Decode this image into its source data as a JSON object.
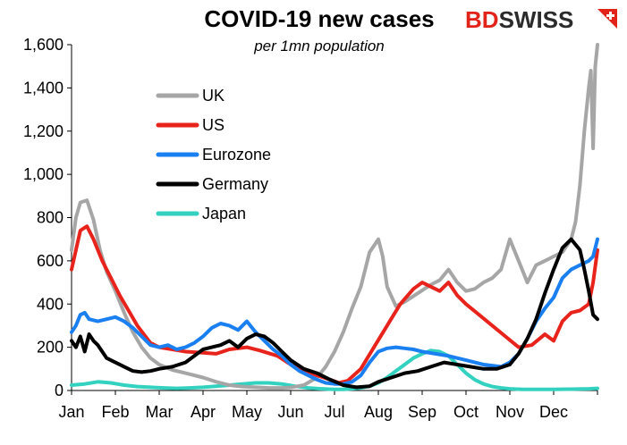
{
  "brand": {
    "part1": "BD",
    "part2": "SWISS",
    "color1": "#e2231a",
    "color2": "#2b2b2b"
  },
  "chart_data": {
    "type": "line",
    "title": "COVID-19  new cases",
    "subtitle": "per 1mn population",
    "xlabel": "",
    "ylabel": "",
    "ylim": [
      0,
      1600
    ],
    "yticks": [
      0,
      200,
      400,
      600,
      800,
      1000,
      1200,
      1400,
      1600
    ],
    "ytick_labels": [
      "0",
      "200",
      "400",
      "600",
      "800",
      "1,000",
      "1,200",
      "1,400",
      "1,600"
    ],
    "x_tick_labels": [
      "Jan",
      "Feb",
      "Mar",
      "Apr",
      "May",
      "Jun",
      "Jul",
      "Aug",
      "Sep",
      "Oct",
      "Nov",
      "Dec"
    ],
    "xlim": [
      0,
      12
    ],
    "grid": false,
    "legend": "upper-left",
    "series": [
      {
        "name": "UK",
        "color": "#a6a6a6",
        "x": [
          0.0,
          0.1,
          0.2,
          0.35,
          0.5,
          0.65,
          0.8,
          1.0,
          1.2,
          1.4,
          1.6,
          1.8,
          2.0,
          2.3,
          2.6,
          3.0,
          3.3,
          3.6,
          3.9,
          4.2,
          4.5,
          4.8,
          5.0,
          5.3,
          5.6,
          5.8,
          6.0,
          6.2,
          6.4,
          6.6,
          6.8,
          7.0,
          7.1,
          7.2,
          7.4,
          7.6,
          7.9,
          8.2,
          8.4,
          8.6,
          8.8,
          9.0,
          9.2,
          9.4,
          9.6,
          9.8,
          10.0,
          10.2,
          10.4,
          10.6,
          10.8,
          11.0,
          11.2,
          11.4,
          11.5,
          11.6,
          11.7,
          11.8,
          11.85,
          11.9,
          11.95,
          12.0
        ],
        "y": [
          650,
          800,
          870,
          880,
          790,
          650,
          550,
          460,
          360,
          270,
          200,
          150,
          120,
          95,
          80,
          60,
          40,
          25,
          18,
          15,
          12,
          12,
          14,
          25,
          60,
          110,
          180,
          270,
          380,
          480,
          640,
          700,
          620,
          480,
          390,
          410,
          450,
          490,
          510,
          560,
          500,
          460,
          470,
          500,
          520,
          560,
          700,
          600,
          500,
          580,
          600,
          620,
          640,
          700,
          780,
          950,
          1200,
          1400,
          1480,
          1120,
          1500,
          1600
        ]
      },
      {
        "name": "US",
        "color": "#e8231c",
        "x": [
          0.0,
          0.1,
          0.2,
          0.35,
          0.5,
          0.7,
          0.9,
          1.1,
          1.3,
          1.5,
          1.8,
          2.0,
          2.3,
          2.6,
          3.0,
          3.3,
          3.6,
          4.0,
          4.3,
          4.7,
          5.0,
          5.3,
          5.6,
          5.9,
          6.1,
          6.3,
          6.6,
          6.9,
          7.2,
          7.5,
          7.8,
          8.0,
          8.2,
          8.4,
          8.6,
          8.8,
          9.0,
          9.3,
          9.6,
          9.9,
          10.2,
          10.5,
          10.8,
          11.0,
          11.2,
          11.4,
          11.6,
          11.8,
          11.9,
          12.0
        ],
        "y": [
          560,
          650,
          740,
          760,
          700,
          600,
          520,
          440,
          370,
          300,
          220,
          200,
          190,
          180,
          175,
          170,
          190,
          200,
          185,
          160,
          120,
          90,
          70,
          50,
          35,
          45,
          100,
          200,
          300,
          400,
          470,
          500,
          480,
          460,
          500,
          440,
          400,
          350,
          300,
          250,
          200,
          210,
          260,
          230,
          320,
          360,
          370,
          400,
          500,
          650
        ]
      },
      {
        "name": "Eurozone",
        "color": "#1a7ff0",
        "x": [
          0.0,
          0.1,
          0.2,
          0.3,
          0.4,
          0.6,
          0.8,
          1.0,
          1.2,
          1.4,
          1.6,
          1.8,
          2.0,
          2.2,
          2.4,
          2.6,
          2.8,
          3.0,
          3.2,
          3.4,
          3.6,
          3.8,
          4.0,
          4.2,
          4.4,
          4.6,
          4.8,
          5.0,
          5.2,
          5.4,
          5.6,
          5.8,
          6.0,
          6.2,
          6.4,
          6.6,
          6.8,
          7.0,
          7.2,
          7.4,
          7.6,
          7.8,
          8.0,
          8.3,
          8.6,
          9.0,
          9.4,
          9.8,
          10.0,
          10.2,
          10.4,
          10.6,
          10.8,
          11.0,
          11.2,
          11.4,
          11.6,
          11.8,
          11.9,
          12.0
        ],
        "y": [
          270,
          300,
          350,
          360,
          330,
          320,
          330,
          340,
          320,
          290,
          250,
          210,
          200,
          210,
          190,
          200,
          220,
          250,
          290,
          310,
          300,
          280,
          320,
          270,
          230,
          190,
          160,
          120,
          90,
          70,
          50,
          35,
          30,
          30,
          40,
          70,
          130,
          180,
          195,
          200,
          195,
          190,
          180,
          170,
          160,
          140,
          120,
          110,
          130,
          170,
          240,
          320,
          380,
          430,
          520,
          560,
          580,
          600,
          620,
          700
        ]
      },
      {
        "name": "Germany",
        "color": "#000000",
        "x": [
          0.0,
          0.1,
          0.2,
          0.3,
          0.4,
          0.5,
          0.6,
          0.7,
          0.8,
          1.0,
          1.2,
          1.4,
          1.6,
          1.8,
          2.0,
          2.3,
          2.6,
          3.0,
          3.2,
          3.4,
          3.6,
          3.8,
          4.0,
          4.2,
          4.4,
          4.6,
          4.8,
          5.0,
          5.3,
          5.6,
          5.9,
          6.2,
          6.5,
          6.8,
          7.0,
          7.3,
          7.6,
          7.9,
          8.2,
          8.5,
          8.8,
          9.1,
          9.4,
          9.7,
          10.0,
          10.2,
          10.4,
          10.6,
          10.8,
          11.0,
          11.2,
          11.4,
          11.6,
          11.7,
          11.8,
          11.9,
          12.0
        ],
        "y": [
          230,
          200,
          250,
          180,
          260,
          230,
          210,
          180,
          150,
          130,
          110,
          90,
          85,
          90,
          100,
          110,
          130,
          190,
          200,
          210,
          230,
          200,
          240,
          260,
          250,
          220,
          180,
          140,
          100,
          80,
          50,
          25,
          15,
          20,
          40,
          60,
          80,
          90,
          110,
          130,
          120,
          110,
          100,
          100,
          120,
          170,
          240,
          330,
          450,
          560,
          660,
          700,
          650,
          560,
          460,
          350,
          330
        ]
      },
      {
        "name": "Japan",
        "color": "#33d1bf",
        "x": [
          0.0,
          0.3,
          0.6,
          0.9,
          1.2,
          1.5,
          1.8,
          2.1,
          2.4,
          2.7,
          3.0,
          3.3,
          3.6,
          3.9,
          4.2,
          4.5,
          4.8,
          5.1,
          5.4,
          5.7,
          6.0,
          6.2,
          6.4,
          6.6,
          6.8,
          7.0,
          7.2,
          7.4,
          7.6,
          7.8,
          8.0,
          8.2,
          8.4,
          8.6,
          8.8,
          9.0,
          9.2,
          9.4,
          9.6,
          9.8,
          10.0,
          10.3,
          10.6,
          11.0,
          11.4,
          11.8,
          12.0
        ],
        "y": [
          25,
          30,
          40,
          35,
          25,
          18,
          15,
          12,
          10,
          12,
          15,
          20,
          25,
          30,
          35,
          35,
          30,
          20,
          12,
          8,
          5,
          5,
          8,
          12,
          20,
          35,
          60,
          90,
          120,
          150,
          170,
          185,
          180,
          160,
          120,
          80,
          50,
          30,
          18,
          12,
          8,
          5,
          5,
          5,
          6,
          8,
          10
        ]
      }
    ]
  }
}
